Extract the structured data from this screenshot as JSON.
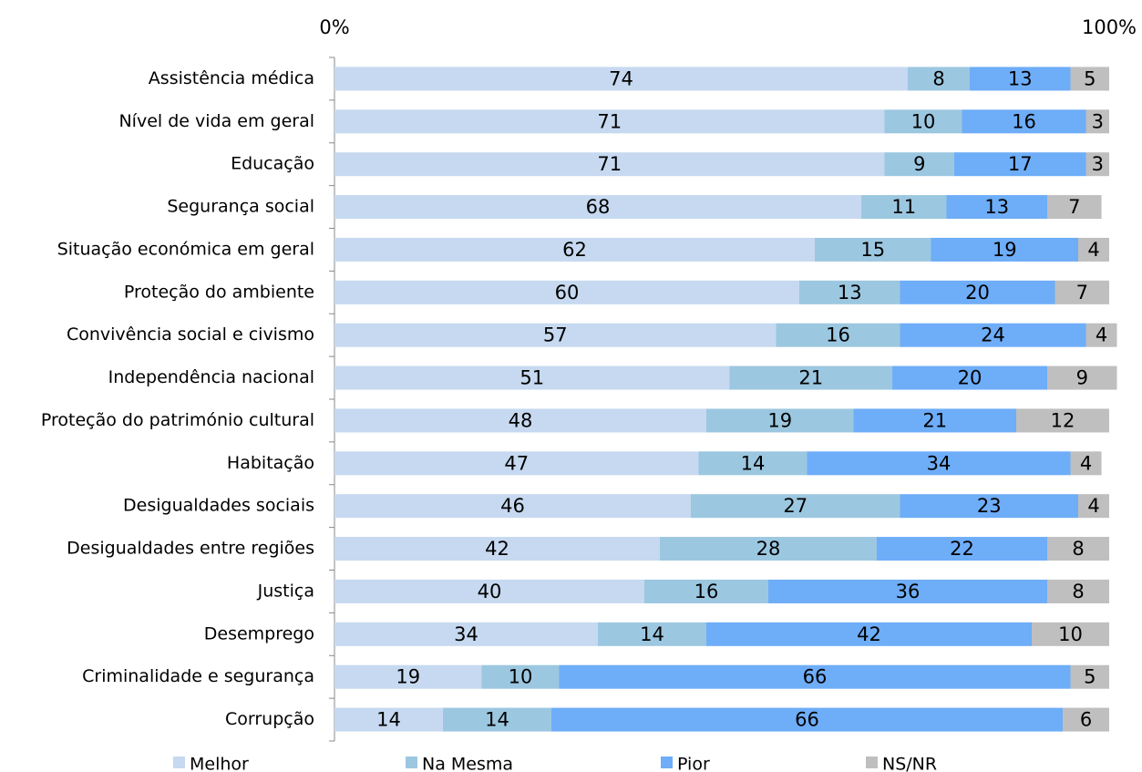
{
  "chart_data": {
    "type": "stacked_bar_horizontal",
    "categories": [
      "Assistência médica",
      "Nível de vida em geral",
      "Educação",
      "Segurança social",
      "Situação económica em geral",
      "Proteção do ambiente",
      "Convivência social e civismo",
      "Independência nacional",
      "Proteção do património cultural",
      "Habitação",
      "Desigualdades sociais",
      "Desigualdades entre regiões",
      "Justiça",
      "Desemprego",
      "Criminalidade e segurança",
      "Corrupção"
    ],
    "series": [
      {
        "name": "Melhor",
        "color": "#c6d9f0",
        "values": [
          74,
          71,
          71,
          68,
          62,
          60,
          57,
          51,
          48,
          47,
          46,
          42,
          40,
          34,
          19,
          14
        ]
      },
      {
        "name": "Na Mesma",
        "color": "#9cc7e0",
        "values": [
          8,
          10,
          9,
          11,
          15,
          13,
          16,
          21,
          19,
          14,
          27,
          28,
          16,
          14,
          10,
          14
        ]
      },
      {
        "name": "Pior",
        "color": "#6eadf8",
        "values": [
          13,
          16,
          17,
          13,
          19,
          20,
          24,
          20,
          21,
          34,
          23,
          22,
          36,
          42,
          66,
          66
        ]
      },
      {
        "name": "NS/NR",
        "color": "#bfbfbf",
        "values": [
          5,
          3,
          3,
          7,
          4,
          7,
          4,
          9,
          12,
          4,
          4,
          8,
          8,
          10,
          5,
          6
        ]
      }
    ],
    "xlim": [
      0,
      100
    ],
    "xticks": [
      {
        "value": 0,
        "label": "0%"
      },
      {
        "value": 100,
        "label": "100%"
      }
    ],
    "legend": "bottom"
  }
}
